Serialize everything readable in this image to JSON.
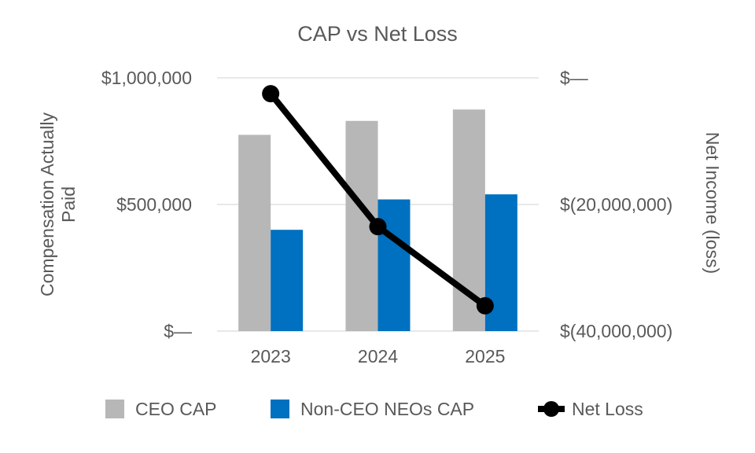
{
  "chart_data": {
    "type": "bar+line",
    "title": "CAP vs Net Loss",
    "categories": [
      "2023",
      "2024",
      "2025"
    ],
    "left_axis": {
      "label": "Compensation Actually Paid",
      "range": [
        0,
        1000000
      ],
      "ticks": [
        {
          "value": 1000000,
          "label": "$1,000,000"
        },
        {
          "value": 500000,
          "label": "$500,000"
        },
        {
          "value": 0,
          "label": "$—"
        }
      ]
    },
    "right_axis": {
      "label": "Net Income (loss)",
      "range": [
        -40000000,
        0
      ],
      "ticks": [
        {
          "value": 0,
          "label": "$—"
        },
        {
          "value": -20000000,
          "label": "$(20,000,000)"
        },
        {
          "value": -40000000,
          "label": "$(40,000,000)"
        }
      ]
    },
    "bar_series": [
      {
        "name": "CEO CAP",
        "color": "#b7b7b7",
        "values": [
          775000,
          830000,
          875000
        ]
      },
      {
        "name": "Non-CEO NEOs CAP",
        "color": "#0070c0",
        "values": [
          400000,
          520000,
          540000
        ]
      }
    ],
    "line_series": {
      "name": "Net Loss",
      "color": "#000000",
      "values": [
        -2500000,
        -23500000,
        -36000000
      ]
    },
    "gridlines": true,
    "legend_position": "bottom"
  }
}
